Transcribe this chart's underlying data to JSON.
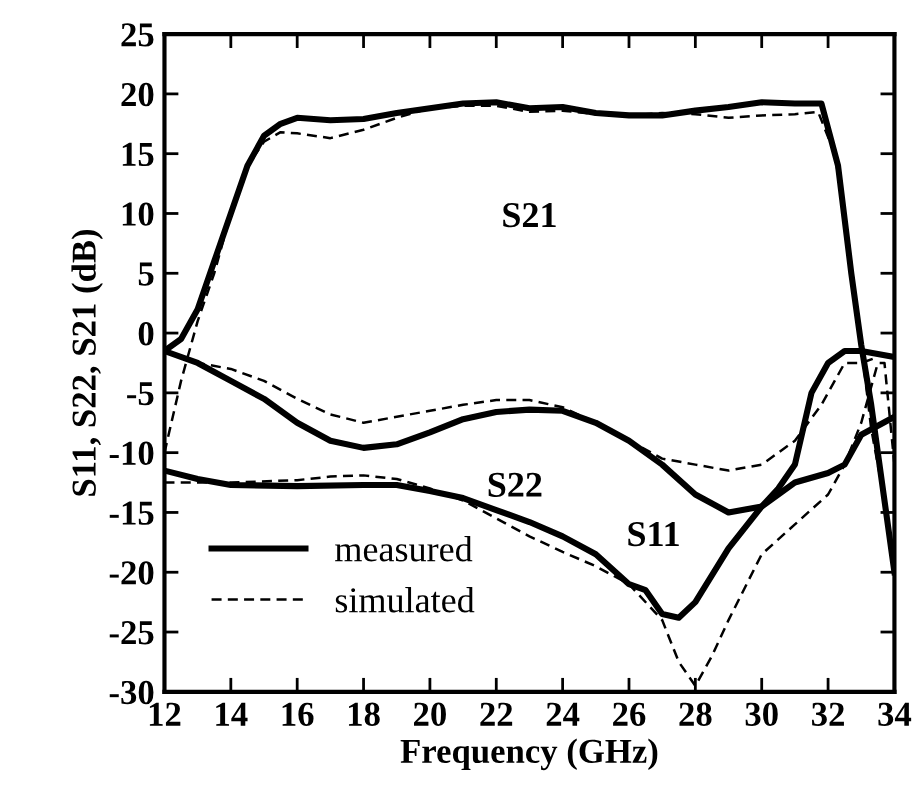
{
  "chart_data": {
    "type": "line",
    "xlabel": "Frequency (GHz)",
    "ylabel": "S11, S22, S21 (dB)",
    "xlim": [
      12,
      34
    ],
    "xticks": [
      12,
      14,
      16,
      18,
      20,
      22,
      24,
      26,
      28,
      30,
      32,
      34
    ],
    "ylim": [
      -30,
      25
    ],
    "yticks": [
      -30,
      -25,
      -20,
      -15,
      -10,
      -5,
      0,
      5,
      10,
      15,
      20,
      25
    ],
    "grid": false,
    "legend": "bottom left",
    "marker": "none",
    "annotations": [
      "S21",
      "S22",
      "S11"
    ],
    "series": [
      {
        "name": "measured",
        "color": "#000000",
        "line_style": "solid",
        "x": [
          12,
          12.5,
          13,
          13.5,
          14,
          14.5,
          15,
          15.5,
          16,
          17,
          18,
          19,
          20,
          21,
          22,
          23,
          24,
          25,
          26,
          27,
          28,
          29,
          30,
          31,
          31.8,
          32.3,
          32.7,
          33,
          33.3,
          33.6,
          34
        ],
        "values": [
          -1.5,
          -0.5,
          2,
          6,
          10,
          14,
          16.5,
          17.5,
          18,
          17.8,
          17.9,
          18.4,
          18.8,
          19.2,
          19.3,
          18.8,
          18.9,
          18.4,
          18.2,
          18.2,
          18.6,
          18.9,
          19.3,
          19.2,
          19.2,
          14,
          5,
          -1,
          -6,
          -12,
          -20
        ]
      },
      {
        "color": "#000000",
        "line_style": "solid",
        "x": [
          12,
          13,
          14,
          15,
          16,
          17,
          18,
          19,
          20,
          21,
          22,
          23,
          24,
          25,
          26,
          27,
          28,
          29,
          30,
          31,
          32,
          32.5,
          33,
          34
        ],
        "values": [
          -1.5,
          -2.5,
          -4,
          -5.5,
          -7.5,
          -9,
          -9.6,
          -9.3,
          -8.3,
          -7.2,
          -6.6,
          -6.4,
          -6.5,
          -7.5,
          -9,
          -11,
          -13.5,
          -15,
          -14.5,
          -12.5,
          -11.7,
          -11,
          -8.5,
          -7
        ]
      },
      {
        "color": "#000000",
        "line_style": "solid",
        "x": [
          12,
          13,
          14,
          16,
          18,
          19,
          20,
          21,
          22,
          23,
          24,
          25,
          26,
          26.5,
          27,
          27.5,
          28,
          29,
          30,
          30.5,
          31,
          31.5,
          32,
          32.5,
          33,
          34
        ],
        "values": [
          -11.5,
          -12.2,
          -12.7,
          -12.8,
          -12.7,
          -12.7,
          -13.2,
          -13.8,
          -14.8,
          -15.8,
          -17,
          -18.5,
          -21,
          -21.5,
          -23.5,
          -23.8,
          -22.5,
          -18,
          -14.5,
          -13,
          -11,
          -5,
          -2.5,
          -1.5,
          -1.5,
          -2
        ]
      },
      {
        "name": "simulated",
        "color": "#000000",
        "line_style": "dashed",
        "x": [
          12,
          12.5,
          13,
          13.5,
          14,
          14.5,
          15,
          15.5,
          16,
          17,
          18,
          19,
          20,
          21,
          22,
          23,
          24,
          25,
          26,
          27,
          28,
          29,
          30,
          31,
          31.7,
          32.2,
          32.6,
          33,
          33.3,
          33.7,
          34
        ],
        "values": [
          -10,
          -4,
          1,
          5,
          10,
          14,
          16,
          16.8,
          16.7,
          16.3,
          17,
          18,
          18.8,
          19,
          19,
          18.5,
          18.6,
          18.3,
          18.2,
          18.4,
          18.3,
          18,
          18.2,
          18.3,
          18.5,
          15,
          8,
          -1,
          -8,
          -14,
          -20
        ]
      },
      {
        "color": "#000000",
        "line_style": "dashed",
        "x": [
          12,
          13,
          14,
          15,
          16,
          17,
          18,
          19,
          20,
          21,
          22,
          23,
          24,
          25,
          26,
          27,
          28,
          29,
          30,
          31,
          31.8,
          32.5,
          33,
          33.5
        ],
        "values": [
          -1.5,
          -2.5,
          -3,
          -4,
          -5.5,
          -6.8,
          -7.5,
          -7,
          -6.5,
          -6,
          -5.6,
          -5.6,
          -6.2,
          -7.5,
          -9,
          -10.5,
          -11,
          -11.5,
          -11,
          -9,
          -6,
          -2.5,
          -2.5,
          -2
        ]
      },
      {
        "color": "#000000",
        "line_style": "dashed",
        "x": [
          12,
          13,
          14,
          16,
          17,
          18,
          19,
          20,
          21,
          22,
          23,
          24,
          25,
          26,
          27,
          27.5,
          28,
          28.5,
          29,
          30,
          31,
          32,
          32.5,
          33,
          33.5,
          33.7,
          34
        ],
        "values": [
          -12.5,
          -12.5,
          -12.5,
          -12.3,
          -12,
          -11.9,
          -12.2,
          -13,
          -14,
          -15.5,
          -17,
          -18.3,
          -19.5,
          -21,
          -24,
          -27.5,
          -29.5,
          -27,
          -24,
          -18.5,
          -16,
          -13.5,
          -11,
          -7.5,
          -2.5,
          -2.5,
          -11
        ]
      }
    ]
  }
}
